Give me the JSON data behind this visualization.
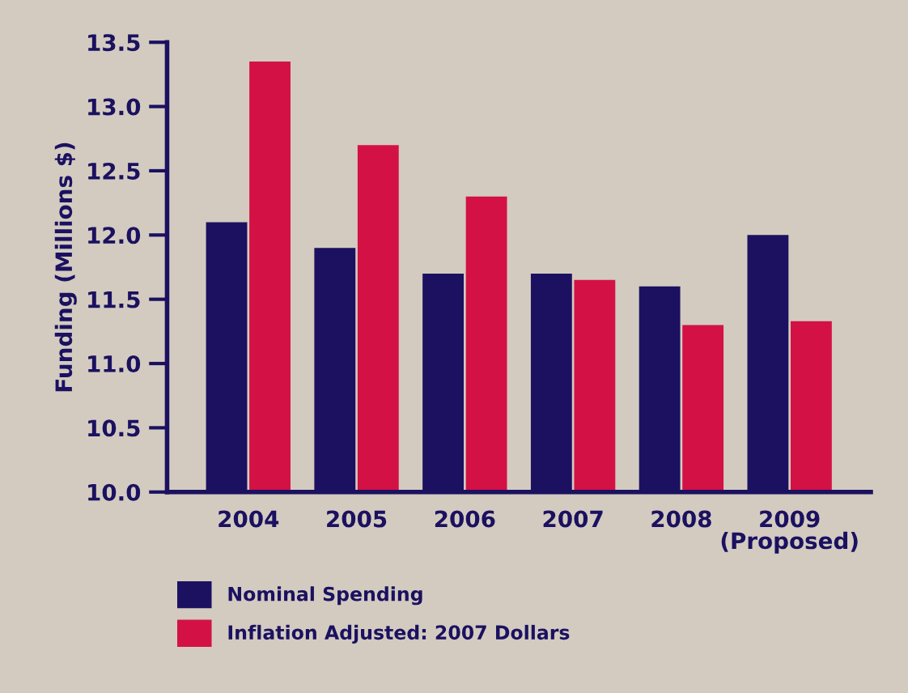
{
  "chart_data": {
    "type": "bar",
    "ylabel": "Funding (Millions $)",
    "categories": [
      "2004",
      "2005",
      "2006",
      "2007",
      "2008",
      "2009\n(Proposed)"
    ],
    "series": [
      {
        "name": "Nominal Spending",
        "color": "#1b1160",
        "values": [
          12.1,
          11.9,
          11.7,
          11.7,
          11.6,
          12.0
        ]
      },
      {
        "name": "Inflation Adjusted: 2007 Dollars",
        "color": "#d31145",
        "values": [
          13.35,
          12.7,
          12.3,
          11.65,
          11.3,
          11.33
        ]
      }
    ],
    "ylim": [
      10.0,
      13.5
    ],
    "yticks": [
      {
        "value": 10.0,
        "label": "10.0"
      },
      {
        "value": 10.5,
        "label": "10.5"
      },
      {
        "value": 11.0,
        "label": "11.0"
      },
      {
        "value": 11.5,
        "label": "11.5"
      },
      {
        "value": 12.0,
        "label": "12.0"
      },
      {
        "value": 12.5,
        "label": "12.5"
      },
      {
        "value": 13.0,
        "label": "13.0"
      },
      {
        "value": 13.5,
        "label": "13.5"
      }
    ],
    "grid": false,
    "legend": "bottom"
  }
}
